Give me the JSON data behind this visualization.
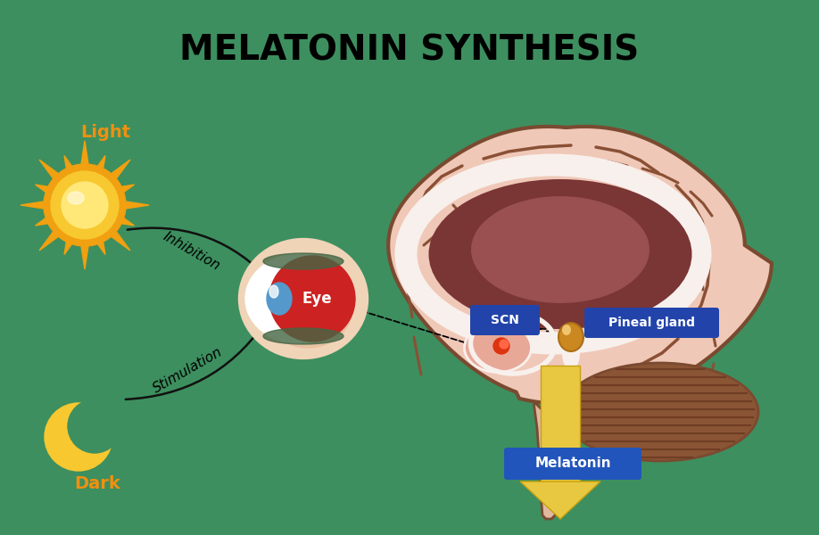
{
  "title": "MELATONIN SYNTHESIS",
  "title_fontsize": 28,
  "title_fontweight": "bold",
  "bg_color": "#3d8f5f",
  "light_label": "Light",
  "dark_label": "Dark",
  "eye_label": "Eye",
  "scn_label": "SCN",
  "pineal_label": "Pineal gland",
  "melatonin_label": "Melatonin",
  "inhibition_label": "Inhibition",
  "stimulation_label": "Stimulation",
  "sun_color_outer": "#f0a010",
  "sun_color_mid": "#f8c830",
  "sun_color_inner": "#ffe878",
  "moon_color": "#f8c830",
  "label_color": "#f09010",
  "arrow_color": "#111111",
  "brain_outer": "#f0c8b8",
  "brain_edge": "#7a4a30",
  "brain_fold": "#8a5035",
  "brain_inner_dark": "#7a3535",
  "brain_inner_lighter": "#9a5050",
  "brain_white_ring": "#f8f0ec",
  "eye_red": "#cc2222",
  "eye_blue": "#5599cc",
  "eye_glow": "#f8e8d8",
  "eye_cream": "#e8c8a8",
  "eye_green": "#446644",
  "scn_box": "#2244aa",
  "scn_text": "#ffffff",
  "pineal_box": "#2244aa",
  "pineal_text": "#ffffff",
  "melatonin_box": "#2255bb",
  "melatonin_text": "#ffffff",
  "arrow_yellow": "#e8c840",
  "arrow_yellow_dark": "#c8a010",
  "scn_dot_color": "#dd3311",
  "pineal_dot_color": "#cc8820",
  "cerebellum_color": "#8a5535",
  "cerebellum_stripe": "#6a3820",
  "brainstem_color": "#e0b8a0"
}
